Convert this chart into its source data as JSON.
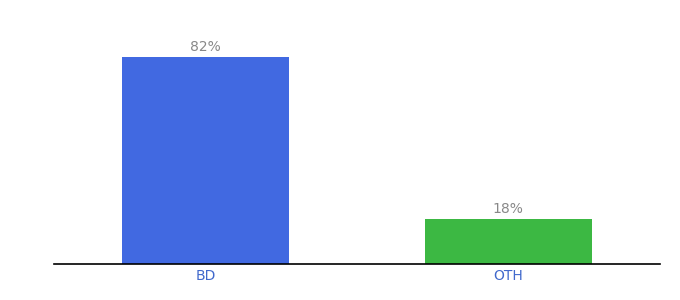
{
  "categories": [
    "BD",
    "OTH"
  ],
  "values": [
    82,
    18
  ],
  "bar_colors": [
    "#4169E1",
    "#3CB843"
  ],
  "value_labels": [
    "82%",
    "18%"
  ],
  "background_color": "#ffffff",
  "bar_width": 0.55,
  "xlim": [
    -0.5,
    1.5
  ],
  "ylim": [
    0,
    95
  ],
  "label_fontsize": 10,
  "tick_fontsize": 10,
  "label_color": "#888888",
  "tick_label_color": "#4169cc"
}
